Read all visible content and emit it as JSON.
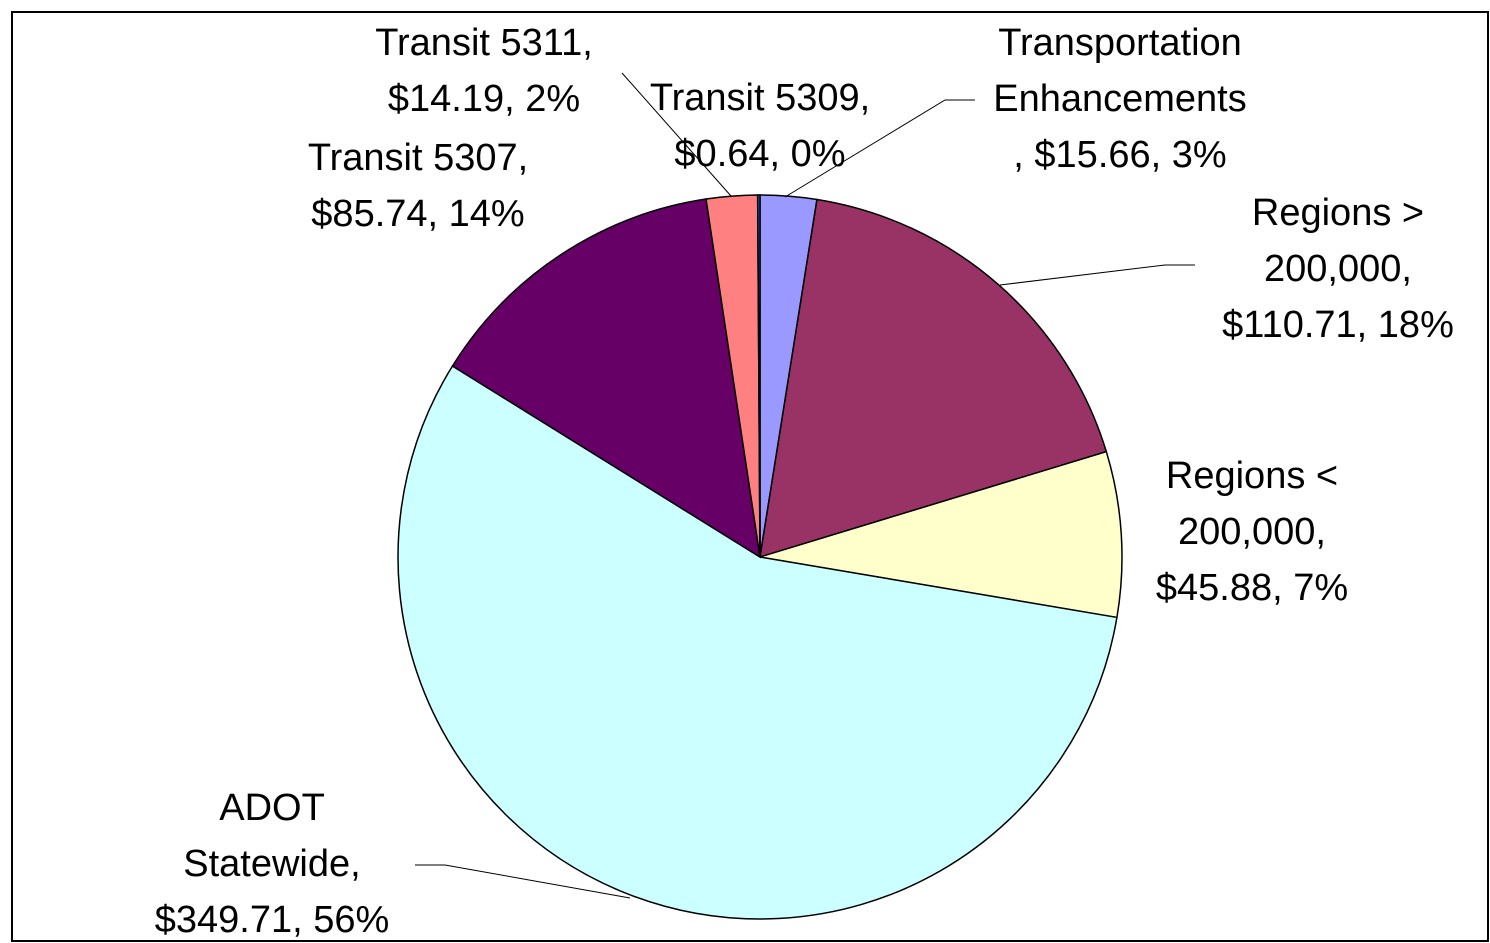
{
  "chart_data": {
    "type": "pie",
    "categories": [
      "Transportation\nEnhancements\n, $15.66, 3%",
      "Regions >\n200,000,\n$110.71, 18%",
      "Regions <\n200,000,\n$45.88, 7%",
      "ADOT\nStatewide,\n$349.71, 56%",
      "Transit 5307,\n$85.74, 14%",
      "Transit 5311,\n$14.19, 2%",
      "Transit 5309,\n$0.64, 0%"
    ],
    "values": [
      15.66,
      110.71,
      45.88,
      349.71,
      85.74,
      14.19,
      0.64
    ],
    "colors": [
      "#9999ff",
      "#993366",
      "#ffffcc",
      "#ccffff",
      "#660066",
      "#ff8080",
      "#3366cc"
    ]
  }
}
